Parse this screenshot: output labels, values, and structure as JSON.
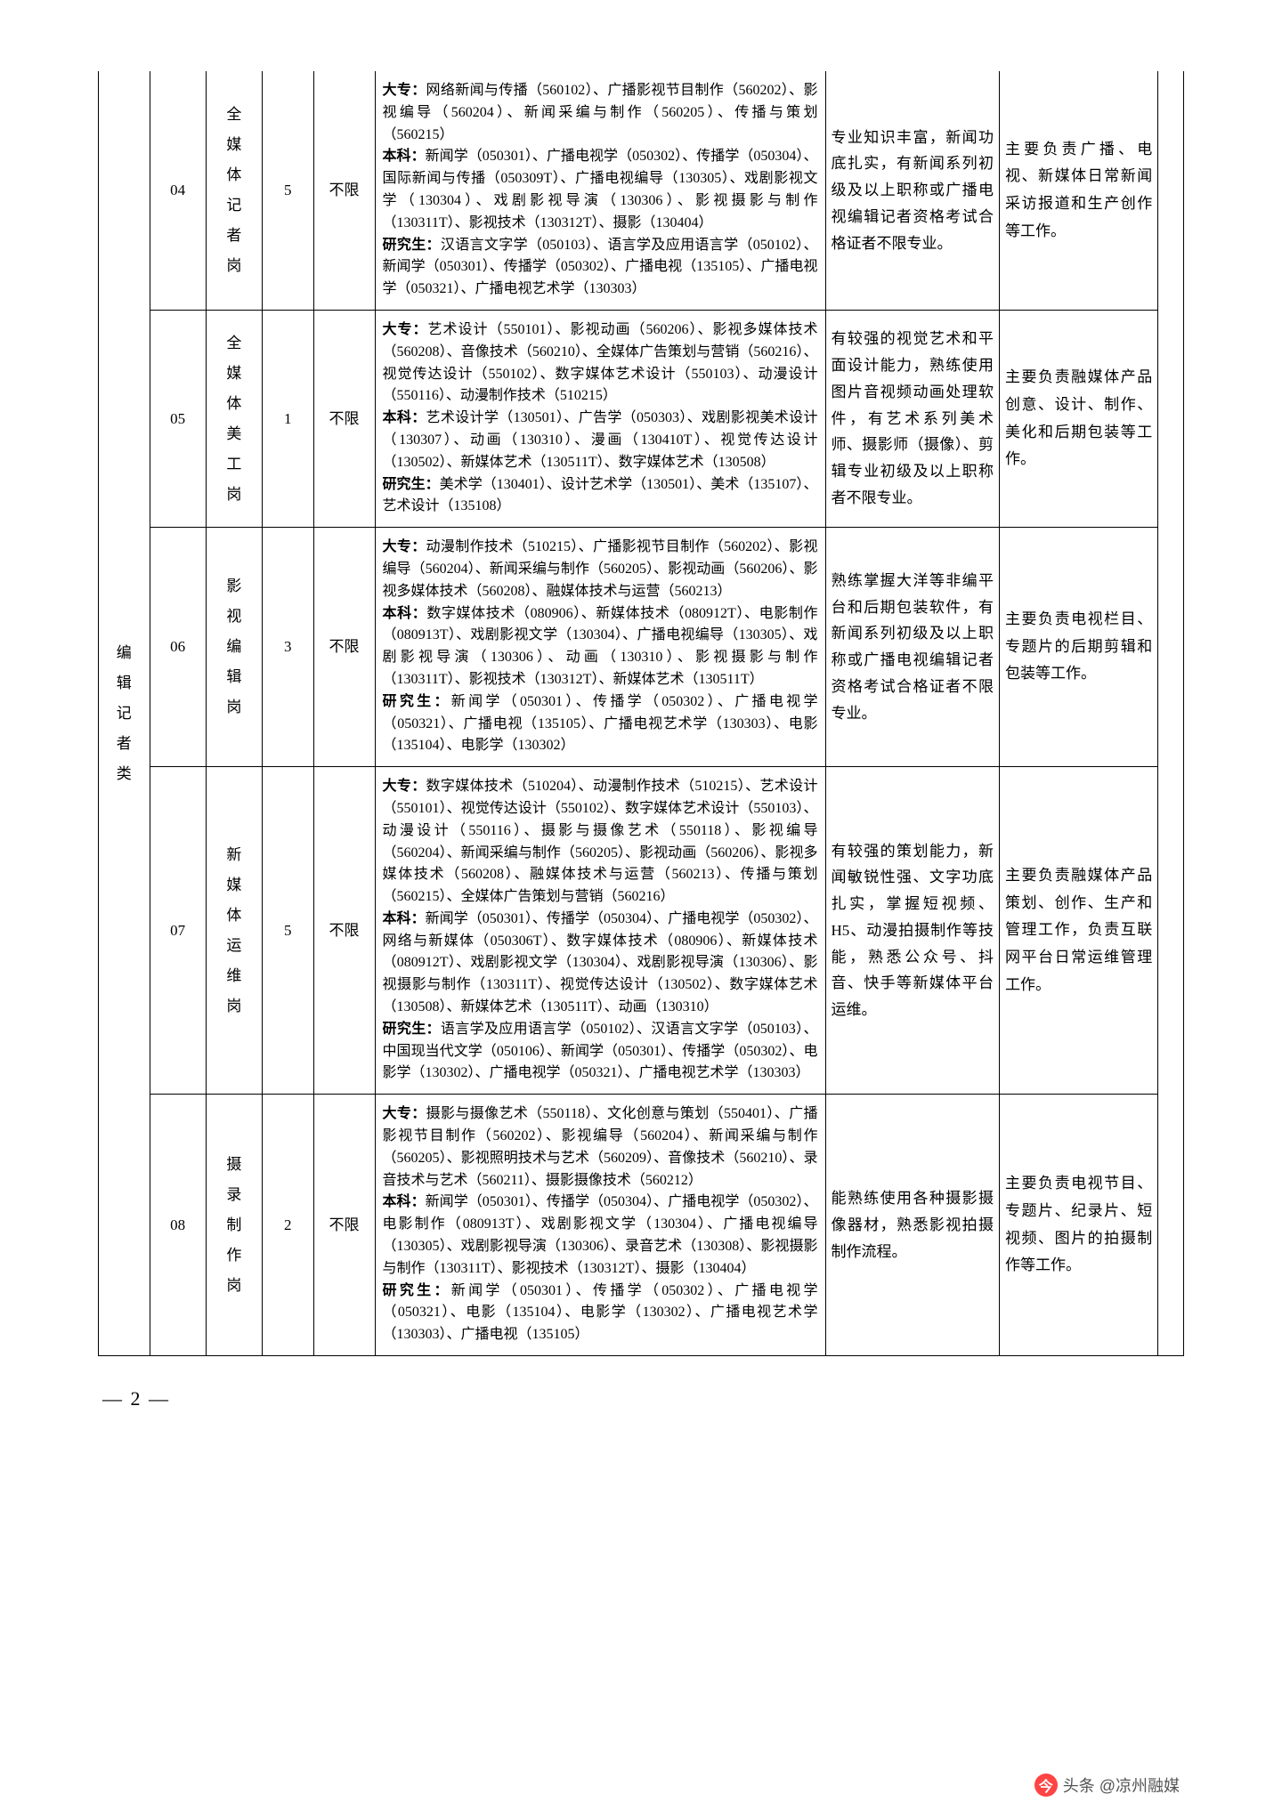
{
  "table": {
    "category_label": "编辑记者类",
    "rows": [
      {
        "code": "04",
        "position": "全媒体记者岗",
        "count": "5",
        "limit": "不限",
        "major": "大专：网络新闻与传播（560102）、广播影视节目制作（560202）、影视编导（560204）、新闻采编与制作（560205）、传播与策划（560215）\n本科：新闻学（050301）、广播电视学（050302）、传播学（050304）、国际新闻与传播（050309T）、广播电视编导（130305）、戏剧影视文学（130304）、戏剧影视导演（130306）、影视摄影与制作（130311T）、影视技术（130312T）、摄影（130404）\n研究生：汉语言文字学（050103）、语言学及应用语言学（050102）、新闻学（050301）、传播学（050302）、广播电视（135105）、广播电视学（050321）、广播电视艺术学（130303）",
        "requirement": "专业知识丰富，新闻功底扎实，有新闻系列初级及以上职称或广播电视编辑记者资格考试合格证者不限专业。",
        "duty": "主要负责广播、电视、新媒体日常新闻采访报道和生产创作等工作。"
      },
      {
        "code": "05",
        "position": "全媒体美工岗",
        "count": "1",
        "limit": "不限",
        "major": "大专：艺术设计（550101）、影视动画（560206）、影视多媒体技术（560208）、音像技术（560210）、全媒体广告策划与营销（560216）、视觉传达设计（550102）、数字媒体艺术设计（550103）、动漫设计（550116）、动漫制作技术（510215）\n本科：艺术设计学（130501）、广告学（050303）、戏剧影视美术设计（130307）、动画（130310）、漫画（130410T）、视觉传达设计（130502）、新媒体艺术（130511T）、数字媒体艺术（130508）\n研究生：美术学（130401）、设计艺术学（130501）、美术（135107）、艺术设计（135108）",
        "requirement": "有较强的视觉艺术和平面设计能力，熟练使用图片音视频动画处理软件，有艺术系列美术师、摄影师（摄像）、剪辑专业初级及以上职称者不限专业。",
        "duty": "主要负责融媒体产品创意、设计、制作、美化和后期包装等工作。"
      },
      {
        "code": "06",
        "position": "影视编辑岗",
        "count": "3",
        "limit": "不限",
        "major": "大专：动漫制作技术（510215）、广播影视节目制作（560202）、影视编导（560204）、新闻采编与制作（560205）、影视动画（560206）、影视多媒体技术（560208）、融媒体技术与运营（560213）\n本科：数字媒体技术（080906）、新媒体技术（080912T）、电影制作（080913T）、戏剧影视文学（130304）、广播电视编导（130305）、戏剧影视导演（130306）、动画（130310）、影视摄影与制作（130311T）、影视技术（130312T）、新媒体艺术（130511T）\n研究生：新闻学（050301）、传播学（050302）、广播电视学（050321）、广播电视（135105）、广播电视艺术学（130303）、电影（135104）、电影学（130302）",
        "requirement": "熟练掌握大洋等非编平台和后期包装软件，有新闻系列初级及以上职称或广播电视编辑记者资格考试合格证者不限专业。",
        "duty": "主要负责电视栏目、专题片的后期剪辑和包装等工作。"
      },
      {
        "code": "07",
        "position": "新媒体运维岗",
        "count": "5",
        "limit": "不限",
        "major": "大专：数字媒体技术（510204）、动漫制作技术（510215）、艺术设计（550101）、视觉传达设计（550102）、数字媒体艺术设计（550103）、动漫设计（550116）、摄影与摄像艺术（550118）、影视编导（560204）、新闻采编与制作（560205）、影视动画（560206）、影视多媒体技术（560208）、融媒体技术与运营（560213）、传播与策划（560215）、全媒体广告策划与营销（560216）\n本科：新闻学（050301）、传播学（050304）、广播电视学（050302）、网络与新媒体（050306T）、数字媒体技术（080906）、新媒体技术（080912T）、戏剧影视文学（130304）、戏剧影视导演（130306）、影视摄影与制作（130311T）、视觉传达设计（130502）、数字媒体艺术（130508）、新媒体艺术（130511T）、动画（130310）\n研究生：语言学及应用语言学（050102）、汉语言文字学（050103）、中国现当代文学（050106）、新闻学（050301）、传播学（050302）、电影学（130302）、广播电视学（050321）、广播电视艺术学（130303）",
        "requirement": "有较强的策划能力，新闻敏锐性强、文字功底扎实，掌握短视频、H5、动漫拍摄制作等技能，熟悉公众号、抖音、快手等新媒体平台运维。",
        "duty": "主要负责融媒体产品策划、创作、生产和管理工作，负责互联网平台日常运维管理工作。"
      },
      {
        "code": "08",
        "position": "摄录制作岗",
        "count": "2",
        "limit": "不限",
        "major": "大专：摄影与摄像艺术（550118）、文化创意与策划（550401）、广播影视节目制作（560202）、影视编导（560204）、新闻采编与制作（560205）、影视照明技术与艺术（560209）、音像技术（560210）、录音技术与艺术（560211）、摄影摄像技术（560212）\n本科：新闻学（050301）、传播学（050304）、广播电视学（050302）、电影制作（080913T）、戏剧影视文学（130304）、广播电视编导（130305）、戏剧影视导演（130306）、录音艺术（130308）、影视摄影与制作（130311T）、影视技术（130312T）、摄影（130404）\n研究生：新闻学（050301）、传播学（050302）、广播电视学（050321）、电影（135104）、电影学（130302）、广播电视艺术学（130303）、广播电视（135105）",
        "requirement": "能熟练使用各种摄影摄像器材，熟悉影视拍摄制作流程。",
        "duty": "主要负责电视节目、专题片、纪录片、短视频、图片的拍摄制作等工作。"
      }
    ]
  },
  "page_number": "— 2 —",
  "watermark": {
    "icon_text": "今",
    "text": "头条 @凉州融媒"
  }
}
